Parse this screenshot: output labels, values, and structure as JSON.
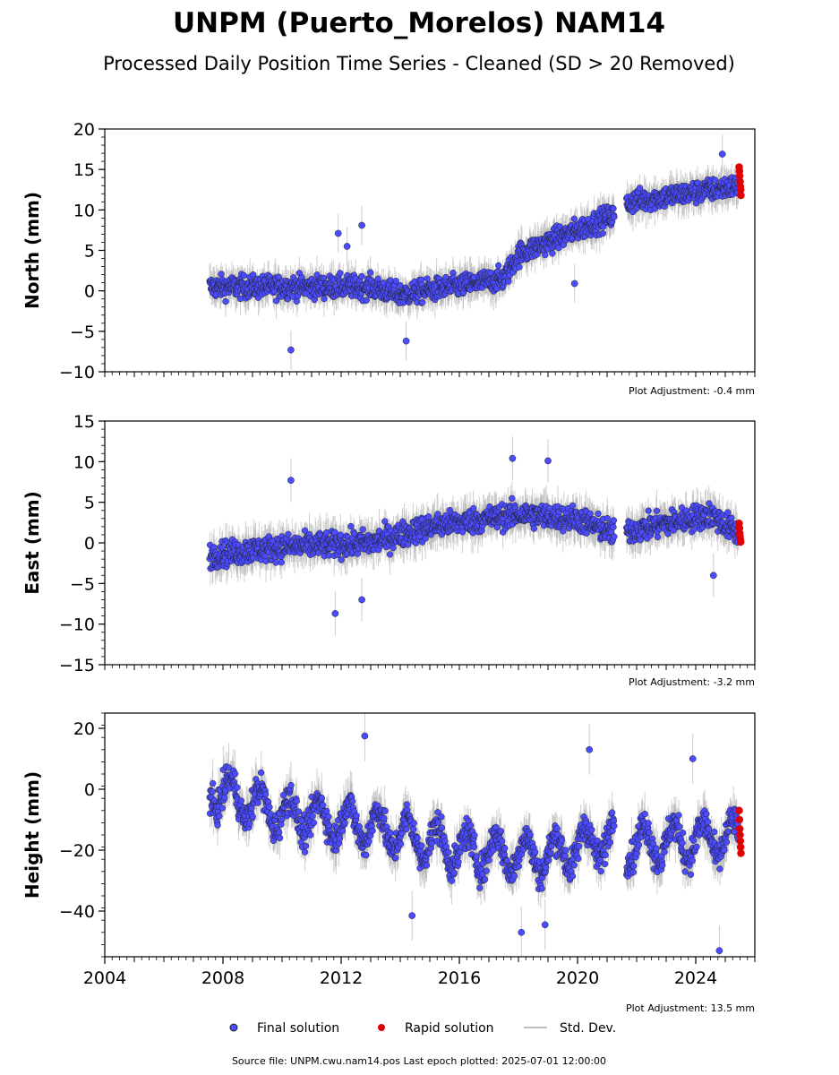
{
  "title": "UNPM (Puerto_Morelos) NAM14",
  "subtitle": "Processed Daily Position Time Series - Cleaned (SD > 20 Removed)",
  "footer": "Source file: UNPM.cwu.nam14.pos  Last epoch plotted: 2025-07-01 12:00:00",
  "legend": {
    "final": "Final solution",
    "rapid": "Rapid solution",
    "std": "Std. Dev."
  },
  "colors": {
    "final": "#4b4bff",
    "final_edge": "#202020",
    "rapid": "#e00000",
    "std": "#a9a9a9"
  },
  "chart_data": [
    {
      "type": "scatter",
      "ylabel": "North (mm)",
      "adjustment": "Plot Adjustment: -0.4 mm",
      "ylim": [
        -10,
        20
      ],
      "yticks": [
        -10,
        -5,
        0,
        5,
        10,
        15,
        20
      ],
      "ytick_labels": [
        "−10",
        "−5",
        "0",
        "5",
        "10",
        "15",
        "20"
      ],
      "xlim": [
        2004,
        2026
      ],
      "series": [
        {
          "kind": "final",
          "trend": [
            [
              2007.6,
              0.5
            ],
            [
              2013.0,
              0.5
            ],
            [
              2014.0,
              -0.5
            ],
            [
              2017.5,
              1.5
            ],
            [
              2018.0,
              4.5
            ],
            [
              2021.3,
              9.5
            ],
            [
              2021.8,
              11
            ],
            [
              2025.5,
              13
            ]
          ],
          "noise": 1.8,
          "sd": 1.6
        },
        {
          "kind": "rapid",
          "x": [
            2025.47,
            2025.48,
            2025.49,
            2025.5,
            2025.51,
            2025.52,
            2025.53
          ],
          "y": [
            15.3,
            14.8,
            14.2,
            13.5,
            12.9,
            12.5,
            11.8
          ]
        }
      ],
      "outliers": [
        [
          2010.3,
          -7.3
        ],
        [
          2011.9,
          7.1
        ],
        [
          2012.2,
          5.5
        ],
        [
          2012.7,
          8.1
        ],
        [
          2014.2,
          -6.2
        ],
        [
          2019.9,
          0.9
        ],
        [
          2024.9,
          16.9
        ]
      ]
    },
    {
      "type": "scatter",
      "ylabel": "East (mm)",
      "adjustment": "Plot Adjustment: -3.2 mm",
      "ylim": [
        -15,
        15
      ],
      "yticks": [
        -15,
        -10,
        -5,
        0,
        5,
        10,
        15
      ],
      "ytick_labels": [
        "−15",
        "−10",
        "−5",
        "0",
        "5",
        "10",
        "15"
      ],
      "xlim": [
        2004,
        2026
      ],
      "series": [
        {
          "kind": "final",
          "trend": [
            [
              2007.6,
              -1.5
            ],
            [
              2010.0,
              -0.5
            ],
            [
              2013.0,
              0.0
            ],
            [
              2015.0,
              2.0
            ],
            [
              2018.0,
              3.5
            ],
            [
              2020.0,
              3.0
            ],
            [
              2021.3,
              1.0
            ],
            [
              2021.8,
              1.5
            ],
            [
              2024.5,
              3.5
            ],
            [
              2025.5,
              1.0
            ]
          ],
          "noise": 2.0,
          "sd": 1.8
        },
        {
          "kind": "rapid",
          "x": [
            2025.47,
            2025.48,
            2025.49,
            2025.5,
            2025.51,
            2025.52
          ],
          "y": [
            2.4,
            1.8,
            1.2,
            0.8,
            0.4,
            0.1
          ]
        }
      ],
      "outliers": [
        [
          2011.8,
          -8.7
        ],
        [
          2010.3,
          7.7
        ],
        [
          2017.8,
          10.4
        ],
        [
          2019.0,
          10.1
        ],
        [
          2012.7,
          -7.0
        ],
        [
          2024.6,
          -4.0
        ]
      ]
    },
    {
      "type": "scatter",
      "ylabel": "Height (mm)",
      "adjustment": "Plot Adjustment: 13.5 mm",
      "ylim": [
        -55,
        25
      ],
      "yticks": [
        -40,
        -20,
        0,
        20
      ],
      "ytick_labels": [
        "−40",
        "−20",
        "0",
        "20"
      ],
      "xlim": [
        2004,
        2026
      ],
      "xticks": [
        2004,
        2008,
        2012,
        2016,
        2020,
        2024
      ],
      "xtick_labels": [
        "2004",
        "2008",
        "2012",
        "2016",
        "2020",
        "2024"
      ],
      "series": [
        {
          "kind": "final",
          "trend": [
            [
              2007.6,
              0
            ],
            [
              2010.0,
              -8
            ],
            [
              2013.0,
              -12
            ],
            [
              2016.0,
              -20
            ],
            [
              2019.0,
              -22
            ],
            [
              2021.3,
              -15
            ],
            [
              2021.8,
              -18
            ],
            [
              2025.5,
              -16
            ]
          ],
          "noise": 6.5,
          "sd": 5.5,
          "seasonal": 6
        },
        {
          "kind": "rapid",
          "x": [
            2025.47,
            2025.48,
            2025.49,
            2025.5,
            2025.51,
            2025.52,
            2025.53
          ],
          "y": [
            -7,
            -10,
            -13,
            -15,
            -17,
            -19,
            -21
          ]
        }
      ],
      "outliers": [
        [
          2012.8,
          17.5
        ],
        [
          2014.4,
          -41.5
        ],
        [
          2018.1,
          -47
        ],
        [
          2018.9,
          -44.5
        ],
        [
          2023.9,
          10
        ],
        [
          2024.8,
          -53
        ],
        [
          2020.4,
          13
        ]
      ]
    }
  ]
}
